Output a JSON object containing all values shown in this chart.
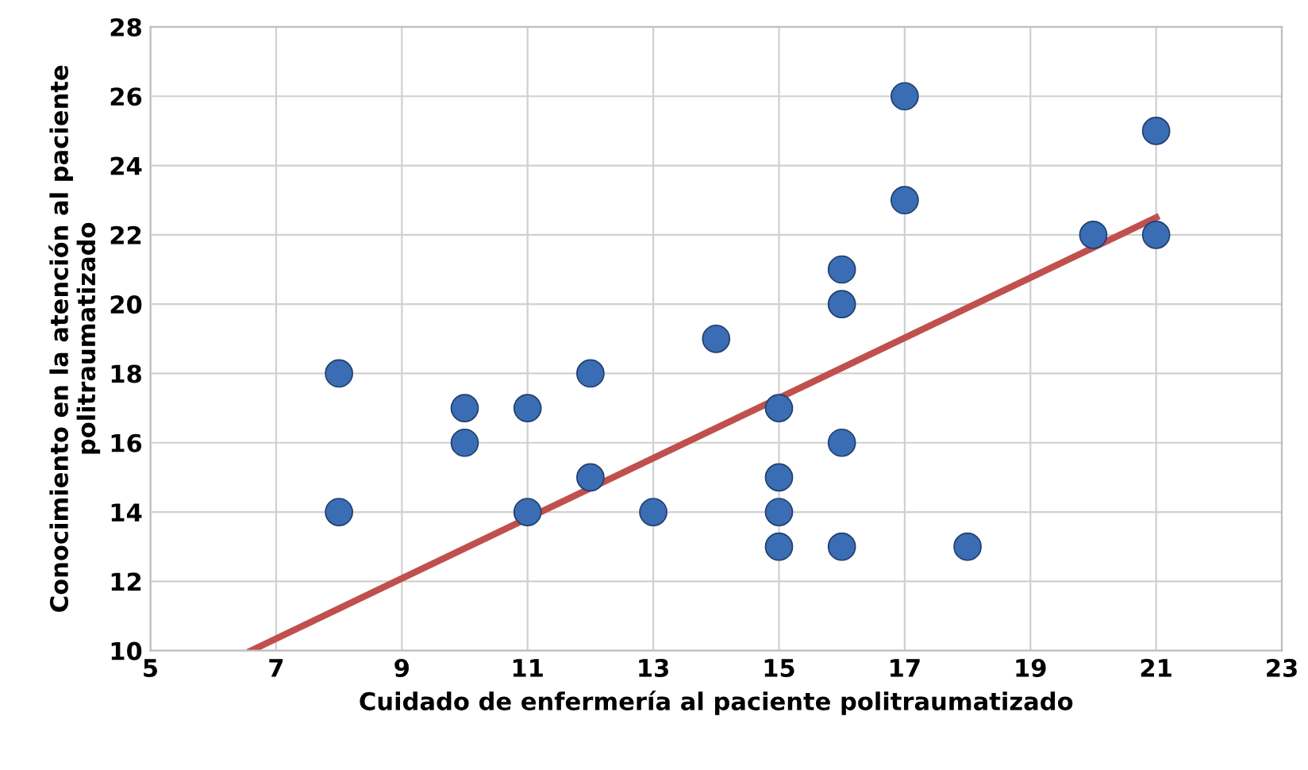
{
  "chart_data": {
    "type": "scatter",
    "xlabel": "Cuidado de enfermería al paciente politraumatizado",
    "ylabel": "Conocimiento en la atención al paciente\npolitraumatizado",
    "xlim": [
      5,
      23
    ],
    "xticks": [
      5,
      7,
      9,
      11,
      13,
      15,
      17,
      19,
      21,
      23
    ],
    "ylim": [
      10,
      28
    ],
    "yticks": [
      10,
      12,
      14,
      16,
      18,
      20,
      22,
      24,
      26,
      28
    ],
    "grid": true,
    "series": [
      {
        "color": "#3a6db3",
        "marker": "circle",
        "x": [
          8,
          8,
          10,
          10,
          11,
          11,
          12,
          12,
          13,
          14,
          15,
          15,
          15,
          15,
          16,
          16,
          16,
          16,
          17,
          17,
          18,
          20,
          21,
          21
        ],
        "values": [
          18,
          14,
          17,
          16,
          17,
          14,
          18,
          15,
          14,
          19,
          17,
          15,
          14,
          13,
          21,
          20,
          16,
          13,
          26,
          23,
          13,
          22,
          25,
          22
        ]
      },
      {
        "type": "line",
        "color": "#c0504d",
        "line_style": "solid",
        "x": [
          6.6,
          21
        ],
        "values": [
          10,
          22.5
        ]
      }
    ]
  }
}
